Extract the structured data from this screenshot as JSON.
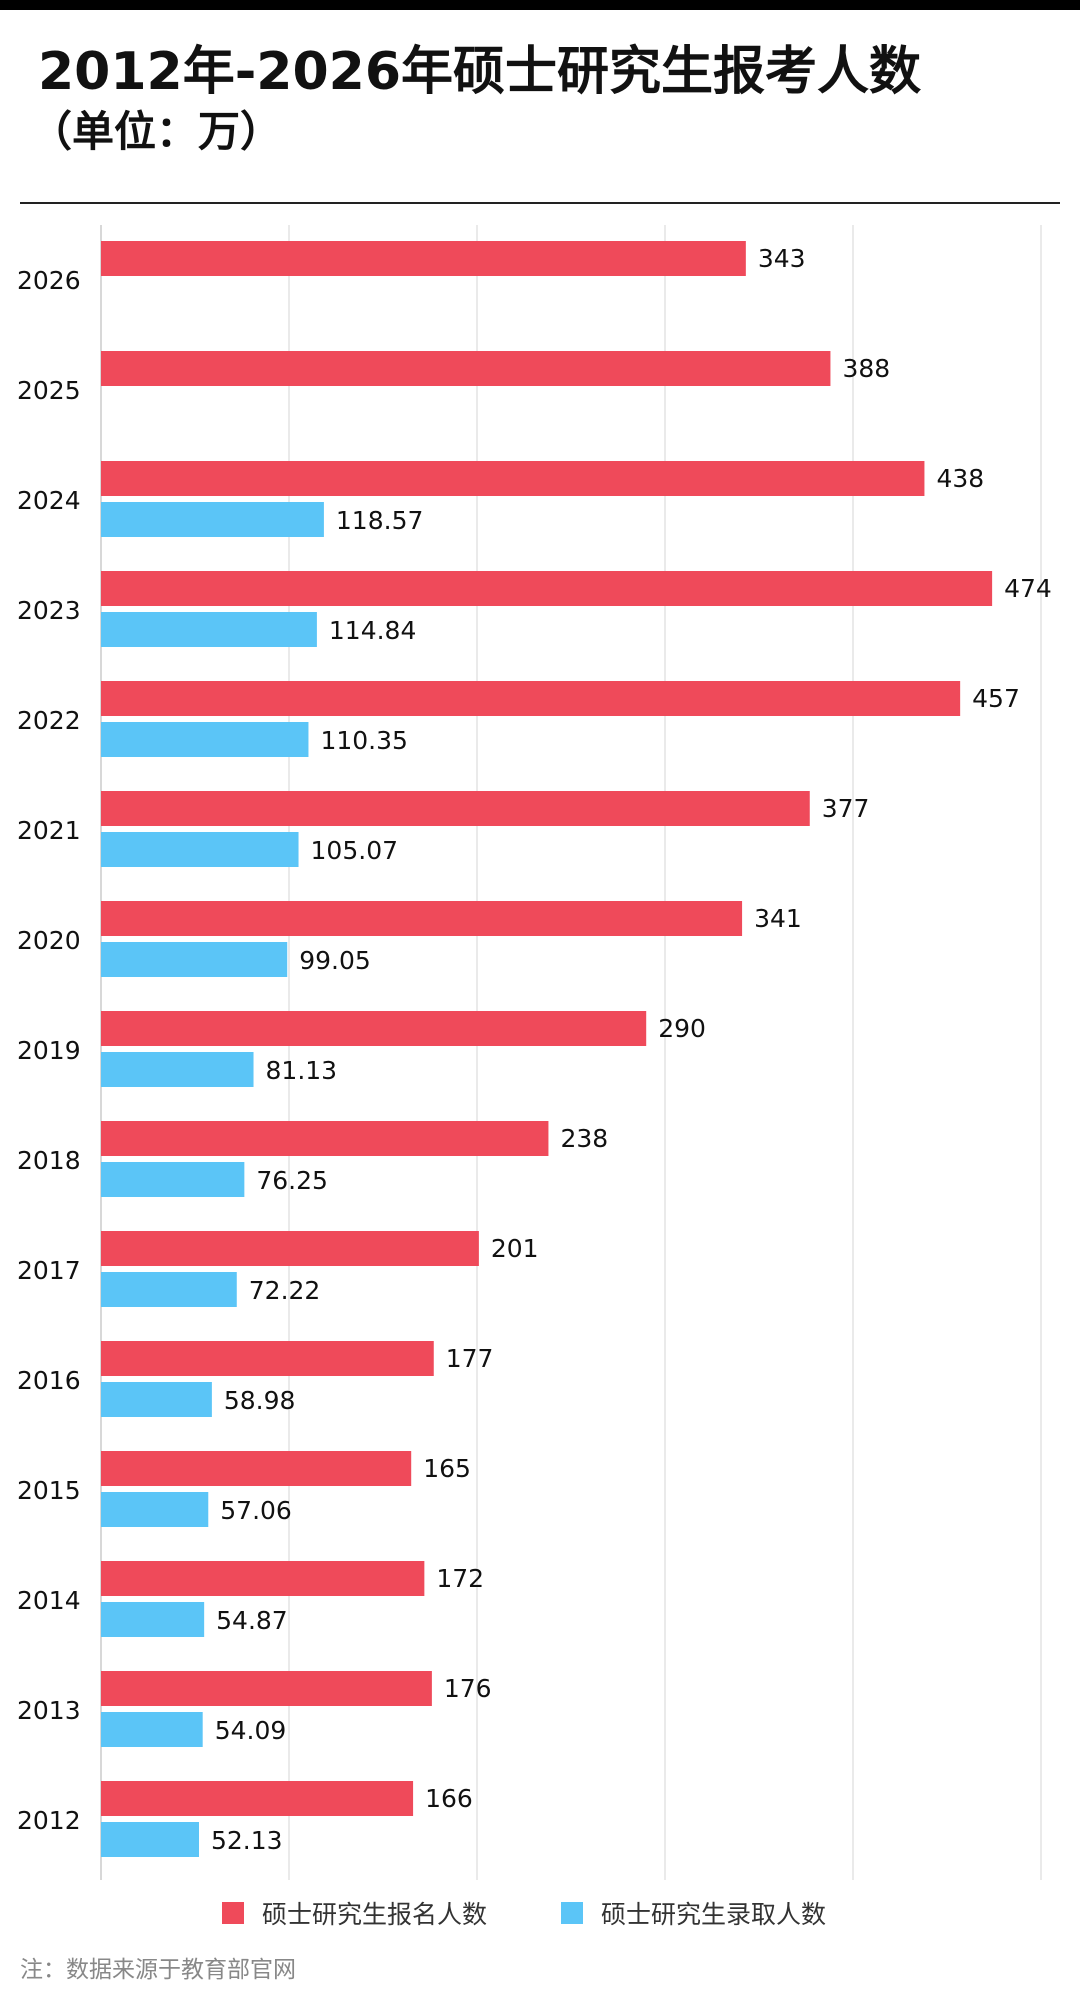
{
  "title": "2012年-2026年硕士研究生报考人数",
  "subtitle": "（单位：万）",
  "legend": {
    "series1": "硕士研究生报名人数",
    "series2": "硕士研究生录取人数"
  },
  "footnote": "注：数据来源于教育部官网",
  "colors": {
    "series1": "#ef4a5a",
    "series2": "#5bc5f7",
    "grid": "#e4e4e4",
    "axis": "#cccccc"
  },
  "chart_data": {
    "type": "bar",
    "orientation": "horizontal",
    "title": "2012年-2026年硕士研究生报考人数",
    "subtitle": "（单位：万）",
    "xlim": [
      0,
      500
    ],
    "grid": true,
    "legend_position": "bottom",
    "categories": [
      "2026",
      "2025",
      "2024",
      "2023",
      "2022",
      "2021",
      "2020",
      "2019",
      "2018",
      "2017",
      "2016",
      "2015",
      "2014",
      "2013",
      "2012"
    ],
    "series": [
      {
        "name": "硕士研究生报名人数",
        "values": [
          343,
          388,
          438,
          474,
          457,
          377,
          341,
          290,
          238,
          201,
          177,
          165,
          172,
          176,
          166
        ],
        "labels": [
          "343",
          "388",
          "438",
          "474",
          "457",
          "377",
          "341",
          "290",
          "238",
          "201",
          "177",
          "165",
          "172",
          "176",
          "166"
        ]
      },
      {
        "name": "硕士研究生录取人数",
        "values": [
          null,
          null,
          118.57,
          114.84,
          110.35,
          105.07,
          99.05,
          81.13,
          76.25,
          72.22,
          58.98,
          57.06,
          54.87,
          54.09,
          52.13
        ],
        "labels": [
          "",
          "",
          "118.57",
          "114.84",
          "110.35",
          "105.07",
          "99.05",
          "81.13",
          "76.25",
          "72.22",
          "58.98",
          "57.06",
          "54.87",
          "54.09",
          "52.13"
        ]
      }
    ]
  }
}
